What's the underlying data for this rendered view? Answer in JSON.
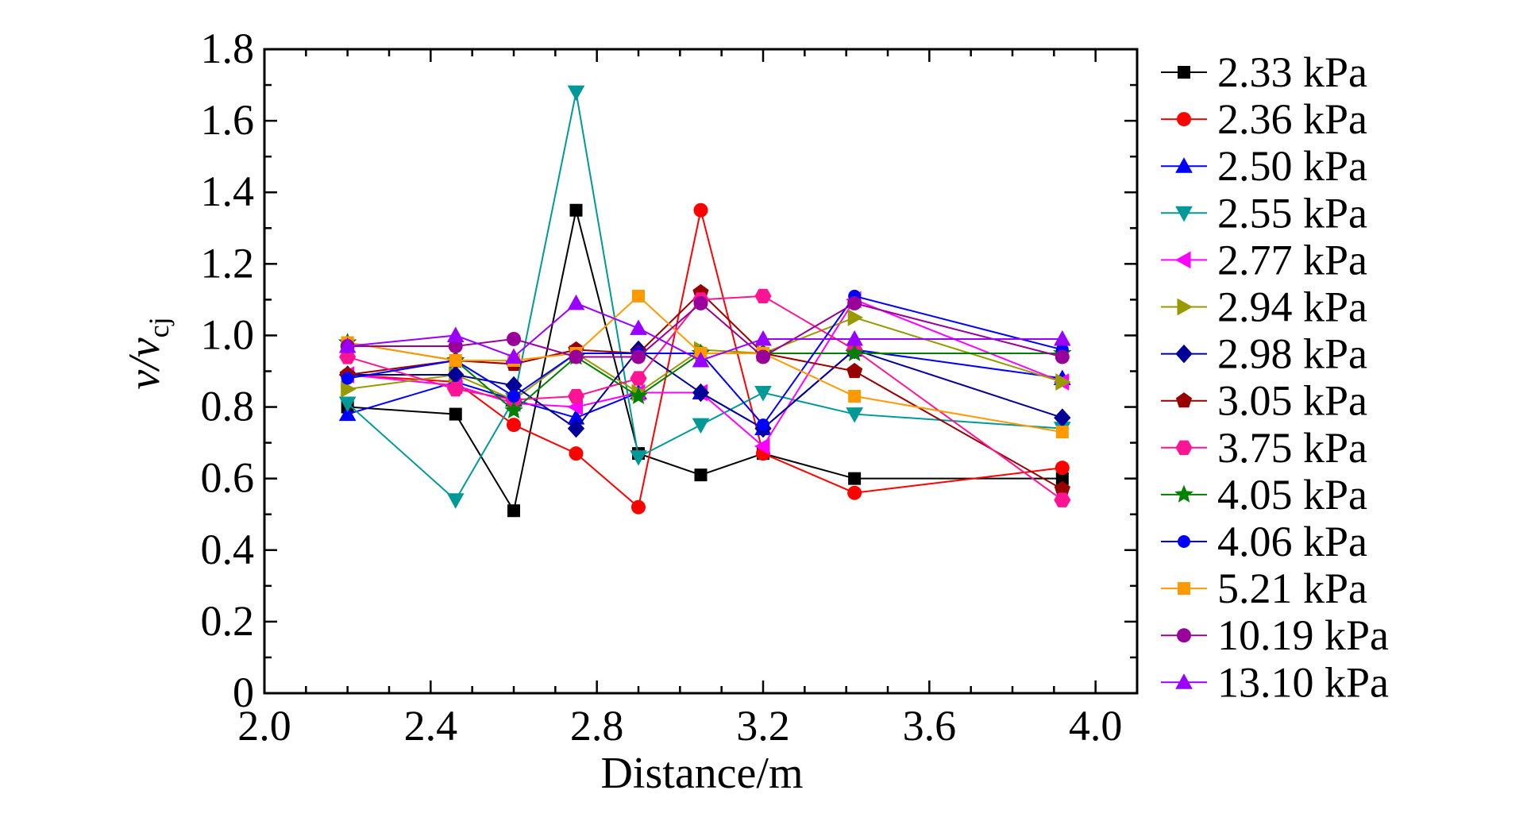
{
  "chart_data": {
    "type": "line",
    "title": "",
    "xlabel": "Distance/m",
    "ylabel": {
      "main": "v/v",
      "subscript": "cj"
    },
    "xlim": [
      2.0,
      4.1
    ],
    "ylim": [
      0,
      1.8
    ],
    "xticks": [
      "2.0",
      "2.4",
      "2.8",
      "3.2",
      "3.6",
      "4.0"
    ],
    "yticks": [
      "0",
      "0.2",
      "0.4",
      "0.6",
      "0.8",
      "1.0",
      "1.2",
      "1.4",
      "1.6",
      "1.8"
    ],
    "x": [
      2.2,
      2.46,
      2.6,
      2.75,
      2.9,
      3.05,
      3.2,
      3.42,
      3.92
    ],
    "grid": false,
    "legend_position": "right",
    "series": [
      {
        "name": "2.33 kPa",
        "color": "#000000",
        "marker": "square",
        "values": [
          0.8,
          0.78,
          0.51,
          1.35,
          0.67,
          0.61,
          0.67,
          0.6,
          0.6
        ]
      },
      {
        "name": "2.36 kPa",
        "color": "#ff0000",
        "marker": "circle",
        "values": [
          0.89,
          0.87,
          0.75,
          0.67,
          0.52,
          1.35,
          0.67,
          0.56,
          0.63
        ]
      },
      {
        "name": "2.50 kPa",
        "color": "#0000ff",
        "marker": "triangle-up",
        "values": [
          0.78,
          0.87,
          0.82,
          0.77,
          0.84,
          0.84,
          0.74,
          0.96,
          0.88
        ]
      },
      {
        "name": "2.55 kPa",
        "color": "#009999",
        "marker": "triangle-down",
        "values": [
          0.81,
          0.54,
          0.82,
          1.68,
          0.66,
          0.75,
          0.84,
          0.78,
          0.74
        ]
      },
      {
        "name": "2.77 kPa",
        "color": "#ff00ff",
        "marker": "triangle-left",
        "values": [
          0.89,
          0.86,
          0.81,
          0.8,
          0.84,
          0.84,
          0.69,
          1.1,
          0.87
        ]
      },
      {
        "name": "2.94 kPa",
        "color": "#999900",
        "marker": "triangle-right",
        "values": [
          0.85,
          0.89,
          0.82,
          0.95,
          0.84,
          0.96,
          0.95,
          1.05,
          0.87
        ]
      },
      {
        "name": "2.98 kPa",
        "color": "#000099",
        "marker": "diamond",
        "values": [
          0.89,
          0.89,
          0.86,
          0.74,
          0.96,
          0.84,
          0.74,
          0.96,
          0.77
        ]
      },
      {
        "name": "3.05 kPa",
        "color": "#990000",
        "marker": "pentagon",
        "values": [
          0.89,
          0.93,
          0.92,
          0.96,
          0.95,
          1.12,
          0.95,
          0.9,
          0.57
        ]
      },
      {
        "name": "3.75 kPa",
        "color": "#ff1493",
        "marker": "hexagon",
        "values": [
          0.94,
          0.85,
          0.82,
          0.83,
          0.88,
          1.1,
          1.11,
          0.96,
          0.54
        ]
      },
      {
        "name": "4.05 kPa",
        "color": "#008000",
        "marker": "star",
        "values": [
          0.98,
          0.93,
          0.79,
          0.94,
          0.83,
          0.95,
          0.95,
          0.95,
          0.95
        ]
      },
      {
        "name": "4.06 kPa",
        "color": "#0000ff",
        "marker": "circle-small",
        "values": [
          0.88,
          0.93,
          0.83,
          0.95,
          0.95,
          0.95,
          0.75,
          1.11,
          0.96
        ]
      },
      {
        "name": "5.21 kPa",
        "color": "#ff9900",
        "marker": "square",
        "values": [
          0.98,
          0.93,
          0.93,
          0.95,
          1.11,
          0.95,
          0.95,
          0.83,
          0.73
        ]
      },
      {
        "name": "10.19 kPa",
        "color": "#990099",
        "marker": "circle",
        "values": [
          0.97,
          0.97,
          0.99,
          0.94,
          0.94,
          1.09,
          0.94,
          1.09,
          0.94
        ]
      },
      {
        "name": "13.10 kPa",
        "color": "#9900ff",
        "marker": "triangle-up",
        "values": [
          0.97,
          1.0,
          0.94,
          1.09,
          1.02,
          0.93,
          0.99,
          0.99,
          0.99
        ]
      }
    ]
  }
}
